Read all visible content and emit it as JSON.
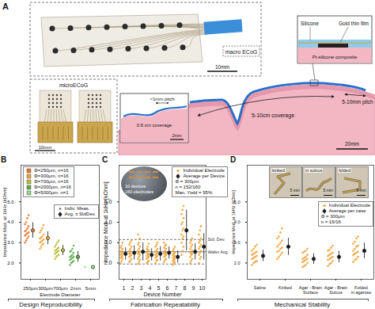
{
  "panel_a": {
    "label": "A",
    "macro_ecog": {
      "title": "macro ECoG",
      "scale_bar": "10mm"
    },
    "cross_section": {
      "layers": [
        "Silicone",
        "Gold thin film",
        "Pt-silicone composite"
      ]
    },
    "micro_ecog": {
      "title": "microECoG",
      "scale_bar": "10mm"
    },
    "micro_inset": {
      "coverage": "0.6 cm coverage",
      "pitch": "<1mm pitch",
      "scale_bar": "2mm"
    },
    "brain": {
      "pitch": "5-10mm pitch",
      "coverage": "5-10cm coverage",
      "scale_bar": "20mm"
    }
  },
  "chart_data": [
    {
      "panel": "B",
      "type": "scatter",
      "categories": [
        "250μm",
        "300μm",
        "700μm",
        "2mm",
        "5mm"
      ],
      "xlabel": "Electrode Diameter",
      "ylabel": "Impedance Mod. at 1kHz [kOhm]",
      "ylim": [
        1.2,
        6.8
      ],
      "yticks": [
        2,
        3,
        4,
        5
      ],
      "legend": "top-left",
      "legend_items": [
        "Indiv. Meas.",
        "Avg. ± StdDev."
      ],
      "series": [
        {
          "name": "Φ=250μm, n=16",
          "color": "#e8762c",
          "category": "250μm",
          "points": [
            3.0,
            3.1,
            3.2,
            3.3,
            3.35,
            3.4,
            3.45,
            3.5,
            3.55,
            3.6,
            3.7,
            3.8,
            3.9,
            4.0,
            4.2,
            4.35
          ],
          "mean": 3.6,
          "std": 0.38
        },
        {
          "name": "Φ=300μm, n=16",
          "color": "#f2a33a",
          "category": "300μm",
          "points": [
            2.7,
            2.8,
            2.9,
            2.95,
            3.0,
            3.05,
            3.1,
            3.15,
            3.2,
            3.25,
            3.3,
            3.4,
            3.5,
            3.6,
            3.7,
            3.85
          ],
          "mean": 3.22,
          "std": 0.32
        },
        {
          "name": "Φ=700μm, n=16",
          "color": "#b9be3a",
          "category": "700μm",
          "points": [
            2.2,
            2.3,
            2.35,
            2.4,
            2.45,
            2.5,
            2.55,
            2.6,
            2.6,
            2.65,
            2.7,
            2.75,
            2.8,
            2.9,
            3.0,
            3.1
          ],
          "mean": 2.62,
          "std": 0.25
        },
        {
          "name": "Φ=2000μm, n=16",
          "color": "#5eae4a",
          "category": "2mm",
          "points": [
            1.9,
            2.0,
            2.05,
            2.1,
            2.15,
            2.2,
            2.25,
            2.3,
            2.3,
            2.35,
            2.4,
            2.5,
            2.55,
            2.6,
            2.7,
            2.85
          ],
          "mean": 2.3,
          "std": 0.26
        },
        {
          "name": "Φ=5000μm, n=1",
          "color": "#9ad68a",
          "category": "5mm",
          "points": [
            1.8
          ],
          "mean": 1.8
        }
      ],
      "footer": "Design Reproducibility"
    },
    {
      "panel": "C",
      "type": "scatter",
      "categories": [
        "1",
        "2",
        "3",
        "4",
        "5",
        "6",
        "7",
        "8",
        "9",
        "10"
      ],
      "xlabel": "Device Number",
      "ylabel": "Impedance Mod. at 1kHz [kOhm]",
      "ylim": [
        1.2,
        6.8
      ],
      "yticks": [
        2,
        3,
        4,
        5
      ],
      "legend": "top-right",
      "series": [
        {
          "name": "Individual Electrode",
          "color": "#f0a030",
          "points": [
            [
              2.0,
              2.1,
              2.2,
              2.25,
              2.3,
              2.35,
              2.4,
              2.45,
              2.5,
              2.55,
              2.6,
              2.7,
              2.75,
              2.85,
              3.0
            ],
            [
              2.05,
              2.1,
              2.2,
              2.3,
              2.35,
              2.4,
              2.45,
              2.5,
              2.55,
              2.6,
              2.7,
              2.8,
              2.9,
              3.0,
              3.1
            ],
            [
              1.95,
              2.05,
              2.15,
              2.2,
              2.3,
              2.4,
              2.45,
              2.5,
              2.55,
              2.6,
              2.7,
              2.8,
              2.9,
              3.0,
              3.2,
              3.4
            ],
            [
              2.0,
              2.05,
              2.1,
              2.2,
              2.25,
              2.3,
              2.35,
              2.4,
              2.45,
              2.5,
              2.6,
              2.65,
              2.7,
              2.8,
              2.95
            ],
            [
              2.0,
              2.1,
              2.15,
              2.25,
              2.3,
              2.35,
              2.4,
              2.45,
              2.5,
              2.55,
              2.6,
              2.7,
              2.8,
              2.9,
              3.0
            ],
            [
              2.05,
              2.15,
              2.2,
              2.3,
              2.35,
              2.4,
              2.45,
              2.5,
              2.5,
              2.55,
              2.6,
              2.7,
              2.75,
              2.85,
              2.9,
              3.0
            ],
            [
              1.9,
              2.0,
              2.05,
              2.1,
              2.15,
              2.2,
              2.25,
              2.3,
              2.35,
              2.4,
              2.45,
              2.5,
              2.6,
              2.7,
              2.8
            ],
            [
              2.4,
              2.6,
              2.8,
              3.0,
              3.2,
              3.3,
              3.4,
              3.6,
              3.7,
              3.9,
              4.0,
              4.2,
              4.4,
              4.6,
              4.8
            ],
            [
              2.0,
              2.1,
              2.2,
              2.3,
              2.4,
              2.45,
              2.5,
              2.55,
              2.6,
              2.7,
              2.8,
              2.9,
              3.0,
              3.1,
              3.2
            ],
            [
              2.0,
              2.2,
              2.3,
              2.4,
              2.5,
              2.6,
              2.7,
              2.8,
              2.9,
              3.0,
              3.1,
              3.2,
              3.4,
              3.6,
              3.8
            ]
          ]
        },
        {
          "name": "Average per Device",
          "color": "#1a1a1a",
          "values": [
            2.45,
            2.5,
            2.55,
            2.4,
            2.45,
            2.5,
            2.3,
            3.6,
            2.55,
            2.8
          ],
          "errors": [
            0.3,
            0.35,
            0.45,
            0.3,
            0.35,
            0.3,
            0.3,
            1.0,
            0.4,
            0.65
          ]
        }
      ],
      "annotations": [
        "Φ = 300μm",
        "n = 152/160",
        "Man. Yield = 95%"
      ],
      "reference_lines": [
        {
          "label": "Std. Dev.",
          "values": [
            1.95,
            3.15
          ],
          "line_style": "dashed"
        },
        {
          "label": "Wafer Avg.",
          "values": [
            2.55
          ],
          "line_style": "solid"
        }
      ],
      "inset": [
        "10 devices",
        "160 electrodes"
      ],
      "footer": "Fabrication Repeatability"
    },
    {
      "panel": "D",
      "type": "scatter",
      "categories": [
        "Saline",
        "Kinked",
        "Agar - Brain\nSurface",
        "Agar - Brain\nSulcus",
        "Folded\nin agarose"
      ],
      "ylabel": "Impedance Mod. at 1kHz [kOhm]",
      "ylim": [
        1.2,
        6.8
      ],
      "yticks": [
        2,
        3,
        4,
        5
      ],
      "legend": "right",
      "series": [
        {
          "name": "Individual Electrode",
          "color": "#f0a030",
          "points": [
            [
              1.9,
              2.0,
              2.05,
              2.1,
              2.2,
              2.25,
              2.3,
              2.35,
              2.4,
              2.45,
              2.5,
              2.55,
              2.6,
              2.7,
              2.8,
              2.9
            ],
            [
              2.2,
              2.3,
              2.4,
              2.5,
              2.55,
              2.6,
              2.7,
              2.75,
              2.8,
              2.9,
              3.0,
              3.1,
              3.2,
              3.3,
              3.5,
              3.7
            ],
            [
              1.8,
              1.85,
              1.9,
              2.0,
              2.05,
              2.1,
              2.15,
              2.2,
              2.2,
              2.25,
              2.3,
              2.4,
              2.5,
              2.55,
              2.6,
              2.7
            ],
            [
              1.85,
              1.95,
              2.0,
              2.1,
              2.15,
              2.2,
              2.25,
              2.3,
              2.35,
              2.4,
              2.45,
              2.5,
              2.6,
              2.65,
              2.75,
              2.85
            ],
            [
              2.05,
              2.15,
              2.2,
              2.3,
              2.4,
              2.45,
              2.5,
              2.55,
              2.6,
              2.7,
              2.8,
              2.85,
              2.95,
              3.05,
              3.2,
              3.3
            ]
          ]
        },
        {
          "name": "Average per case",
          "color": "#1a1a1a",
          "values": [
            2.35,
            2.8,
            2.2,
            2.3,
            2.6
          ],
          "errors": [
            0.28,
            0.42,
            0.26,
            0.28,
            0.38
          ]
        }
      ],
      "annotations": [
        "Φ = 300μm",
        "n = 16/16"
      ],
      "insets": [
        {
          "label": "kinked",
          "scale_bar": "5 mm"
        },
        {
          "label": "in sulcus",
          "scale_bar": "5 mm"
        },
        {
          "label": "folded",
          "scale_bar": "5 mm"
        }
      ],
      "footer": "Mechanical Stability"
    }
  ]
}
